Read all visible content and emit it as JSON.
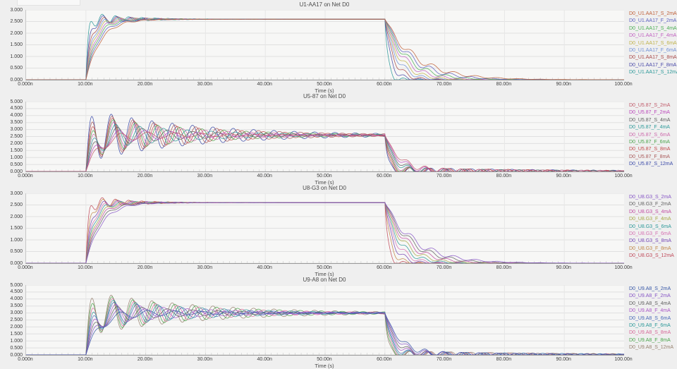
{
  "app": {
    "background": "#efefef",
    "plot_background": "#f7f7f6",
    "grid_color": "#e0e0e0",
    "axis_color": "#9a9a9a"
  },
  "chart_data": [
    {
      "type": "line",
      "title": "U1-AA17 on Net D0",
      "xlabel": "Time (s)",
      "xlim_ns": [
        0,
        100
      ],
      "xticks": [
        "0.000n",
        "10.00n",
        "20.00n",
        "30.00n",
        "40.00n",
        "50.00n",
        "60.00n",
        "70.00n",
        "80.00n",
        "90.00n",
        "100.00n"
      ],
      "ylim": [
        0,
        3
      ],
      "yticks": [
        "3.000",
        "2.500",
        "2.000",
        "1.500",
        "1.000",
        "0.500",
        "0.000"
      ],
      "grid": true,
      "legend_position": "right",
      "pulse": {
        "t_rise_ns": 10,
        "t_fall_ns": 60,
        "plateau_v": 2.6
      },
      "series": [
        {
          "name": "D0_U1.AA17_S_2mA",
          "color": "#c06038",
          "rise": 2.4,
          "amp": 0.12,
          "per": 3.0,
          "dec": 6,
          "fall": 5.2,
          "fAmp": 0.5,
          "fDec": 6.0,
          "fper": 3.6
        },
        {
          "name": "D0_U1.AA17_F_2mA",
          "color": "#5a5fc0",
          "rise": 2.05,
          "amp": 0.14,
          "per": 2.9,
          "dec": 6,
          "fall": 4.4,
          "fAmp": 0.5,
          "fDec": 5.5,
          "fper": 3.4
        },
        {
          "name": "D0_U1.AA17_S_4mA",
          "color": "#4aae54",
          "rise": 1.75,
          "amp": 0.16,
          "per": 2.8,
          "dec": 6,
          "fall": 3.7,
          "fAmp": 0.45,
          "fDec": 5.0,
          "fper": 3.2
        },
        {
          "name": "D0_U1.AA17_F_4mA",
          "color": "#c05fc0",
          "rise": 1.5,
          "amp": 0.18,
          "per": 2.7,
          "dec": 6,
          "fall": 3.1,
          "fAmp": 0.42,
          "fDec": 4.5,
          "fper": 3.0
        },
        {
          "name": "D0_U1.AA17_S_6mA",
          "color": "#c0b34a",
          "rise": 1.25,
          "amp": 0.2,
          "per": 2.6,
          "dec": 6,
          "fall": 2.5,
          "fAmp": 0.4,
          "fDec": 4.0,
          "fper": 2.9
        },
        {
          "name": "D0_U1.AA17_F_6mA",
          "color": "#6e8fd6",
          "rise": 1.05,
          "amp": 0.22,
          "per": 2.5,
          "dec": 6,
          "fall": 2.0,
          "fAmp": 0.38,
          "fDec": 3.6,
          "fper": 2.8
        },
        {
          "name": "D0_U1.AA17_S_8mA",
          "color": "#a84848",
          "rise": 0.85,
          "amp": 0.25,
          "per": 2.4,
          "dec": 6,
          "fall": 1.5,
          "fAmp": 0.35,
          "fDec": 3.2,
          "fper": 2.7
        },
        {
          "name": "D0_U1.AA17_F_8mA",
          "color": "#4848a8",
          "rise": 0.62,
          "amp": 0.28,
          "per": 2.3,
          "dec": 6,
          "fall": 1.0,
          "fAmp": 0.3,
          "fDec": 2.8,
          "fper": 2.6
        },
        {
          "name": "D0_U1.AA17_S_12mA",
          "color": "#2a9898",
          "rise": 0.38,
          "amp": 0.34,
          "per": 2.2,
          "dec": 6,
          "fall": 0.5,
          "fAmp": 0.25,
          "fDec": 2.4,
          "fper": 2.5
        }
      ]
    },
    {
      "type": "line",
      "title": "U5-87 on Net D0",
      "xlabel": "Time (s)",
      "xlim_ns": [
        0,
        100
      ],
      "xticks": [
        "0.000n",
        "10.00n",
        "20.00n",
        "30.00n",
        "40.00n",
        "50.00n",
        "60.00n",
        "70.00n",
        "80.00n",
        "90.00n",
        "100.00n"
      ],
      "ylim": [
        0,
        5
      ],
      "yticks": [
        "5.000",
        "4.500",
        "4.000",
        "3.500",
        "3.000",
        "2.500",
        "2.000",
        "1.500",
        "1.000",
        "0.500",
        "0.000"
      ],
      "grid": true,
      "legend_position": "right",
      "pulse": {
        "t_rise_ns": 10,
        "t_fall_ns": 60,
        "plateau_v": 2.6
      },
      "series": [
        {
          "name": "D0_U5.87_S_2mA",
          "color": "#c05868",
          "rise": 2.2,
          "amp": 0.5,
          "per": 4.6,
          "dec": 14,
          "fall": 2.6,
          "fAmp": 0.26,
          "fDec": 26,
          "fper": 3.0
        },
        {
          "name": "D0_U5.87_F_2mA",
          "color": "#bb44bb",
          "rise": 1.8,
          "amp": 0.7,
          "per": 4.4,
          "dec": 14,
          "fall": 2.2,
          "fAmp": 0.27,
          "fDec": 26,
          "fper": 3.0
        },
        {
          "name": "D0_U5.87_S_4mA",
          "color": "#606060",
          "rise": 1.5,
          "amp": 0.95,
          "per": 4.2,
          "dec": 14,
          "fall": 1.8,
          "fAmp": 0.28,
          "fDec": 26,
          "fper": 3.1
        },
        {
          "name": "D0_U5.87_F_4mA",
          "color": "#2a9898",
          "rise": 1.25,
          "amp": 1.15,
          "per": 4.0,
          "dec": 15,
          "fall": 1.5,
          "fAmp": 0.28,
          "fDec": 27,
          "fper": 3.1
        },
        {
          "name": "D0_U5.87_S_6mA",
          "color": "#cc66aa",
          "rise": 1.05,
          "amp": 1.35,
          "per": 3.8,
          "dec": 15,
          "fall": 1.2,
          "fAmp": 0.29,
          "fDec": 27,
          "fper": 3.2
        },
        {
          "name": "D0_U5.87_F_6mA",
          "color": "#4aa34a",
          "rise": 0.9,
          "amp": 1.5,
          "per": 3.7,
          "dec": 16,
          "fall": 1.0,
          "fAmp": 0.29,
          "fDec": 28,
          "fper": 3.2
        },
        {
          "name": "D0_U5.87_S_8mA",
          "color": "#c04848",
          "rise": 0.75,
          "amp": 1.62,
          "per": 3.6,
          "dec": 16,
          "fall": 0.8,
          "fAmp": 0.3,
          "fDec": 28,
          "fper": 3.3
        },
        {
          "name": "D0_U5.87_F_8mA",
          "color": "#a85858",
          "rise": 0.6,
          "amp": 1.75,
          "per": 3.5,
          "dec": 17,
          "fall": 0.6,
          "fAmp": 0.3,
          "fDec": 29,
          "fper": 3.3
        },
        {
          "name": "D0_U5.87_S_12mA",
          "color": "#3848a8",
          "rise": 0.45,
          "amp": 1.9,
          "per": 3.4,
          "dec": 18,
          "fall": 0.45,
          "fAmp": 0.31,
          "fDec": 30,
          "fper": 3.4
        }
      ]
    },
    {
      "type": "line",
      "title": "U8-G3 on Net D0",
      "xlabel": "Time (s)",
      "xlim_ns": [
        0,
        100
      ],
      "xticks": [
        "0.000n",
        "10.00n",
        "20.00n",
        "30.00n",
        "40.00n",
        "50.00n",
        "60.00n",
        "70.00n",
        "80.00n",
        "90.00n",
        "100.00n"
      ],
      "ylim": [
        0,
        3
      ],
      "yticks": [
        "3.000",
        "2.500",
        "2.000",
        "1.500",
        "1.000",
        "0.500",
        "0.000"
      ],
      "grid": true,
      "legend_position": "right",
      "pulse": {
        "t_rise_ns": 10,
        "t_fall_ns": 60,
        "plateau_v": 2.6
      },
      "series": [
        {
          "name": "D0_U8.G3_S_2mA",
          "color": "#8655c6",
          "rise": 2.5,
          "amp": 0.12,
          "per": 3.0,
          "dec": 6,
          "fall": 5.0,
          "fAmp": 0.5,
          "fDec": 6.0,
          "fper": 3.6
        },
        {
          "name": "D0_U8.G3_F_2mA",
          "color": "#606060",
          "rise": 2.1,
          "amp": 0.14,
          "per": 2.9,
          "dec": 6,
          "fall": 4.3,
          "fAmp": 0.48,
          "fDec": 5.5,
          "fper": 3.4
        },
        {
          "name": "D0_U8.G3_S_4mA",
          "color": "#c048a0",
          "rise": 1.8,
          "amp": 0.16,
          "per": 2.8,
          "dec": 6,
          "fall": 3.6,
          "fAmp": 0.45,
          "fDec": 5.0,
          "fper": 3.2
        },
        {
          "name": "D0_U8.G3_F_4mA",
          "color": "#a8a848",
          "rise": 1.55,
          "amp": 0.18,
          "per": 2.7,
          "dec": 6,
          "fall": 3.0,
          "fAmp": 0.42,
          "fDec": 4.5,
          "fper": 3.0
        },
        {
          "name": "D0_U8.G3_S_6mA",
          "color": "#2a9898",
          "rise": 1.3,
          "amp": 0.2,
          "per": 2.6,
          "dec": 6,
          "fall": 2.4,
          "fAmp": 0.4,
          "fDec": 4.0,
          "fper": 2.9
        },
        {
          "name": "D0_U8.G3_F_6mA",
          "color": "#d671b2",
          "rise": 1.1,
          "amp": 0.22,
          "per": 2.5,
          "dec": 6,
          "fall": 1.9,
          "fAmp": 0.38,
          "fDec": 3.6,
          "fper": 2.8
        },
        {
          "name": "D0_U8.G3_S_8mA",
          "color": "#7444b4",
          "rise": 0.88,
          "amp": 0.25,
          "per": 2.4,
          "dec": 6,
          "fall": 1.4,
          "fAmp": 0.35,
          "fDec": 3.2,
          "fper": 2.7
        },
        {
          "name": "D0_U8.G3_F_8mA",
          "color": "#c08648",
          "rise": 0.64,
          "amp": 0.28,
          "per": 2.3,
          "dec": 6,
          "fall": 0.95,
          "fAmp": 0.3,
          "fDec": 2.8,
          "fper": 2.6
        },
        {
          "name": "D0_U8.G3_S_12mA",
          "color": "#c04858",
          "rise": 0.4,
          "amp": 0.34,
          "per": 2.2,
          "dec": 6,
          "fall": 0.5,
          "fAmp": 0.25,
          "fDec": 2.4,
          "fper": 2.5
        }
      ]
    },
    {
      "type": "line",
      "title": "U9-A8 on Net D0",
      "xlabel": "Time (s)",
      "xlim_ns": [
        0,
        100
      ],
      "xticks": [
        "0.000n",
        "10.00n",
        "20.00n",
        "30.00n",
        "40.00n",
        "50.00n",
        "60.00n",
        "70.00n",
        "80.00n",
        "90.00n",
        "100.00n"
      ],
      "ylim": [
        0,
        5
      ],
      "yticks": [
        "5.000",
        "4.500",
        "4.000",
        "3.500",
        "3.000",
        "2.500",
        "2.000",
        "1.500",
        "1.000",
        "0.500",
        "0.000"
      ],
      "grid": true,
      "legend_position": "right",
      "pulse": {
        "t_rise_ns": 10,
        "t_fall_ns": 60,
        "plateau_v": 3.0
      },
      "series": [
        {
          "name": "D0_U9.A8_S_2mA",
          "color": "#3858a8",
          "rise": 2.2,
          "amp": 0.45,
          "per": 4.6,
          "dec": 14,
          "fall": 2.6,
          "fAmp": 0.26,
          "fDec": 26,
          "fper": 3.0
        },
        {
          "name": "D0_U9.A8_F_2mA",
          "color": "#8655c6",
          "rise": 1.8,
          "amp": 0.62,
          "per": 4.4,
          "dec": 14,
          "fall": 2.2,
          "fAmp": 0.27,
          "fDec": 26,
          "fper": 3.0
        },
        {
          "name": "D0_U9.A8_S_4mA",
          "color": "#606060",
          "rise": 1.5,
          "amp": 0.8,
          "per": 4.2,
          "dec": 14,
          "fall": 1.8,
          "fAmp": 0.28,
          "fDec": 26,
          "fper": 3.1
        },
        {
          "name": "D0_U9.A8_F_4mA",
          "color": "#a855c6",
          "rise": 1.25,
          "amp": 0.95,
          "per": 4.0,
          "dec": 15,
          "fall": 1.5,
          "fAmp": 0.28,
          "fDec": 27,
          "fper": 3.1
        },
        {
          "name": "D0_U9.A8_S_6mA",
          "color": "#4868b8",
          "rise": 1.05,
          "amp": 1.1,
          "per": 3.8,
          "dec": 15,
          "fall": 1.2,
          "fAmp": 0.29,
          "fDec": 27,
          "fper": 3.2
        },
        {
          "name": "D0_U9.A8_F_6mA",
          "color": "#2a9898",
          "rise": 0.9,
          "amp": 1.25,
          "per": 3.7,
          "dec": 16,
          "fall": 1.0,
          "fAmp": 0.29,
          "fDec": 28,
          "fper": 3.2
        },
        {
          "name": "D0_U9.A8_S_8mA",
          "color": "#d66898",
          "rise": 0.75,
          "amp": 1.38,
          "per": 3.6,
          "dec": 16,
          "fall": 0.8,
          "fAmp": 0.3,
          "fDec": 28,
          "fper": 3.3
        },
        {
          "name": "D0_U9.A8_F_8mA",
          "color": "#4aa34a",
          "rise": 0.6,
          "amp": 1.5,
          "per": 3.5,
          "dec": 17,
          "fall": 0.6,
          "fAmp": 0.3,
          "fDec": 29,
          "fper": 3.3
        },
        {
          "name": "D0_U9.A8_S_12mA",
          "color": "#96816e",
          "rise": 0.45,
          "amp": 1.62,
          "per": 3.4,
          "dec": 18,
          "fall": 0.45,
          "fAmp": 0.31,
          "fDec": 30,
          "fper": 3.4
        }
      ]
    }
  ]
}
